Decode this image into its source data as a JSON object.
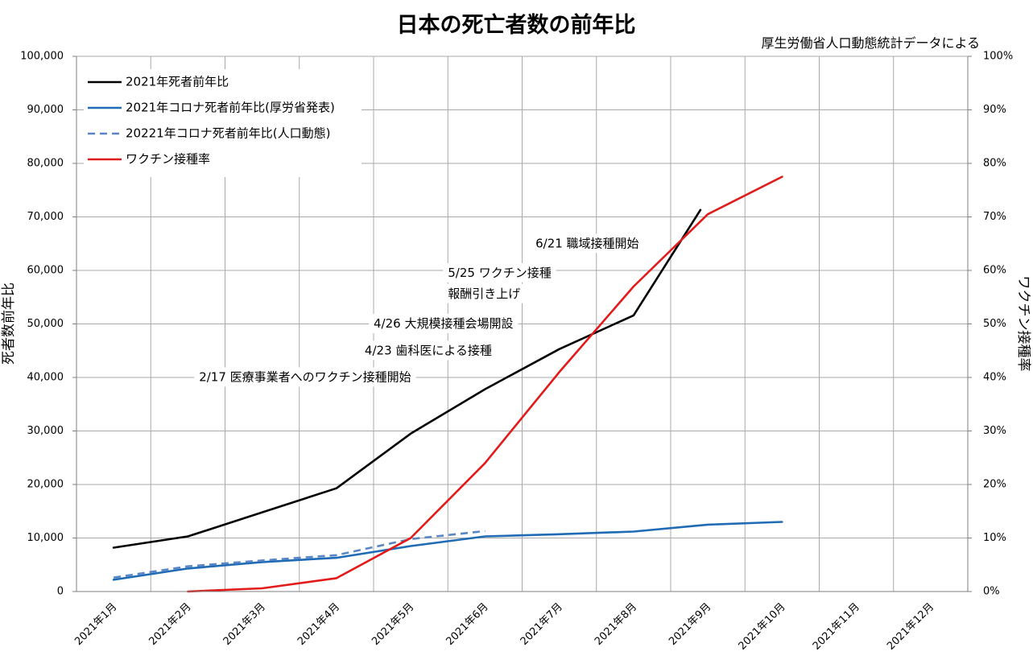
{
  "chart_data": {
    "type": "line",
    "title": "日本の死亡者数の前年比",
    "source_note": "厚生労働省人口動態統計データによる",
    "ylabel": "死者数前年比",
    "y2label": "ワクチン接種率",
    "ylim": [
      0,
      100000
    ],
    "y2lim": [
      0,
      100
    ],
    "yticks": [
      "0",
      "10,000",
      "20,000",
      "30,000",
      "40,000",
      "50,000",
      "60,000",
      "70,000",
      "80,000",
      "90,000",
      "100,000"
    ],
    "y2ticks": [
      "0%",
      "10%",
      "20%",
      "30%",
      "40%",
      "50%",
      "60%",
      "70%",
      "80%",
      "90%",
      "100%"
    ],
    "categories": [
      "2021年1月",
      "2021年2月",
      "2021年3月",
      "2021年4月",
      "2021年5月",
      "2021年6月",
      "2021年7月",
      "2021年8月",
      "2021年9月",
      "2021年10月",
      "2021年11月",
      "2021年12月"
    ],
    "grid": true,
    "legend_position": "top-left",
    "series": [
      {
        "name": "2021年死者前年比",
        "axis": "left",
        "color": "#000000",
        "style": "solid",
        "x": [
          0.5,
          1.5,
          3.5,
          4.5,
          5.5,
          6.5,
          7.5,
          8.4
        ],
        "values": [
          8200,
          10300,
          19300,
          29500,
          37800,
          45300,
          51600,
          71300
        ]
      },
      {
        "name": "2021年コロナ死者前年比(厚労省発表)",
        "axis": "left",
        "color": "#1f6bb5",
        "style": "solid",
        "x": [
          0.5,
          1.5,
          2.5,
          3.5,
          4.5,
          5.5,
          6.5,
          7.5,
          8.5,
          9.5
        ],
        "values": [
          2200,
          4300,
          5500,
          6300,
          8500,
          10300,
          10700,
          11200,
          12500,
          13000
        ]
      },
      {
        "name": "20221年コロナ死者前年比(人口動態)",
        "axis": "left",
        "color": "#5a86c5",
        "style": "dashed",
        "x": [
          0.5,
          1.5,
          2.5,
          3.5,
          4.5,
          5.5
        ],
        "values": [
          2600,
          4700,
          5800,
          6800,
          9800,
          11300
        ]
      },
      {
        "name": "ワクチン接種率",
        "axis": "right",
        "color": "#e31a1a",
        "style": "solid",
        "x": [
          1.5,
          2.5,
          3.5,
          4.5,
          5.5,
          6.5,
          7.5,
          8.5,
          9.5
        ],
        "values": [
          0,
          0.6,
          2.5,
          10,
          24,
          41,
          57,
          70.5,
          77.5
        ]
      }
    ],
    "annotations": [
      {
        "text": "6/21 職域接種開始",
        "x": 6.18,
        "y": 65000
      },
      {
        "text": "5/25 ワクチン接種",
        "x": 5.0,
        "y": 59500
      },
      {
        "text": "報酬引き上げ",
        "x": 5.0,
        "y": 55600
      },
      {
        "text": "4/26  大規模接種会場開設",
        "x": 4.0,
        "y": 50000
      },
      {
        "text": "4/23 歯科医による接種",
        "x": 3.88,
        "y": 45000
      },
      {
        "text": "2/17 医療事業者へのワクチン接種開始",
        "x": 1.65,
        "y": 40000
      }
    ]
  }
}
